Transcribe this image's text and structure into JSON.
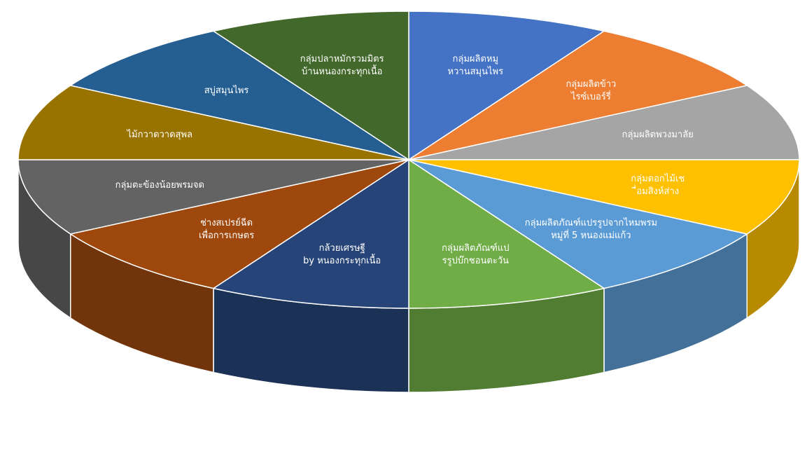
{
  "chart_data": {
    "type": "pie",
    "style": "3d",
    "title": "",
    "slices": [
      {
        "label": "กลุ่มผลิตหมูหวานสมุนไพร",
        "value": 1,
        "color": "#4472c4"
      },
      {
        "label": "กลุ่มผลิตข้าวไรซ์เบอร์รี่",
        "value": 1,
        "color": "#ed7d31"
      },
      {
        "label": "กลุ่มผลิตพวงมาลัย",
        "value": 1,
        "color": "#a5a5a5"
      },
      {
        "label": "กลุ่มดอกไม้เชื่อมสิงห์ส่าง",
        "value": 1,
        "color": "#ffc000"
      },
      {
        "label": "กลุ่มผลิตภัณฑ์แปรรูปจากไหมพรม หมู่ที่ 5 หนองแม่แก้ว",
        "value": 1,
        "color": "#5b9bd5"
      },
      {
        "label": "กลุ่มผลิตภัณฑ์แปรรูปบ๊กชอนตะวัน",
        "value": 1,
        "color": "#70ad47"
      },
      {
        "label": "กล้วยเศรษฐี by หนองกระทุกเนื้อ",
        "value": 1,
        "color": "#264478"
      },
      {
        "label": "ช่างสเปรย์ฉีดเพื่อการเกษตร",
        "value": 1,
        "color": "#9e480e"
      },
      {
        "label": "กลุ่มตะข้องน้อยพรมจด",
        "value": 1,
        "color": "#636363"
      },
      {
        "label": "ไม้กวาดวาดสุพล",
        "value": 1,
        "color": "#997300"
      },
      {
        "label": "สบู่สมุนไพร",
        "value": 1,
        "color": "#255e91"
      },
      {
        "label": "กลุ่มปลาหมักรวมมิตรบ้านหนองกระทุกเนื้อ",
        "value": 1,
        "color": "#43682b"
      }
    ]
  }
}
